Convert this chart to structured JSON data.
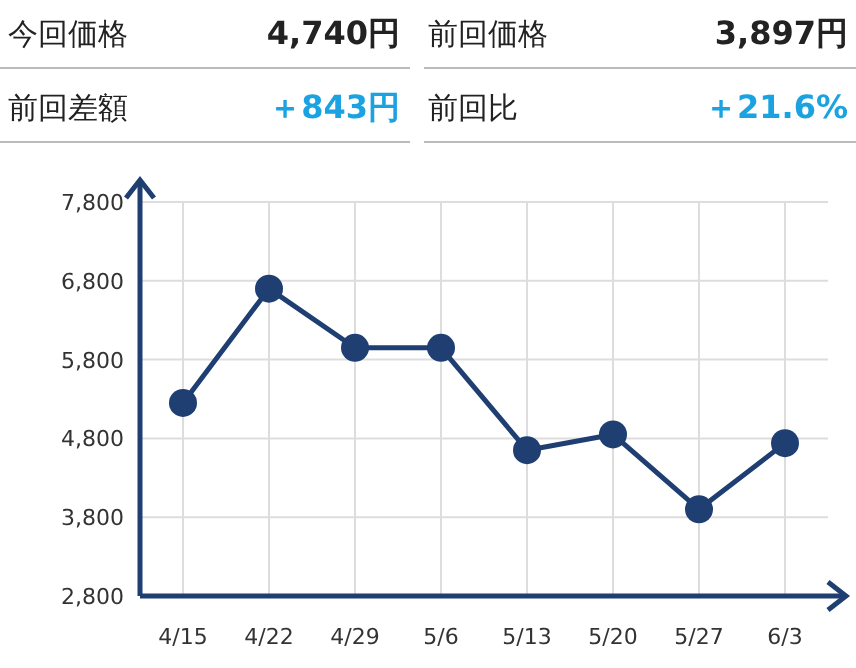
{
  "chart_data": [
    {
      "type": "other",
      "annotations": [
        "今回価格",
        "4,740円",
        "前回価格",
        "3,897円",
        "前回差額",
        "＋843円",
        "前回比",
        "＋21.6%"
      ]
    },
    {
      "type": "line",
      "categories": [
        "4/15",
        "4/22",
        "4/29",
        "5/6",
        "5/13",
        "5/20",
        "5/27",
        "6/3"
      ],
      "series": [
        {
          "color": "#1f3f73",
          "values": [
            5250,
            6700,
            5950,
            5950,
            4650,
            4850,
            3900,
            4740
          ]
        }
      ],
      "ylim": [
        2800,
        7800
      ],
      "yticks": [
        {
          "value": 2800,
          "label": "2,800"
        },
        {
          "value": 3800,
          "label": "3,800"
        },
        {
          "value": 4800,
          "label": "4,800"
        },
        {
          "value": 5800,
          "label": "5,800"
        },
        {
          "value": 6800,
          "label": "6,800"
        },
        {
          "value": 7800,
          "label": "7,800"
        }
      ],
      "grid": true,
      "marker": "circle",
      "line_style": "solid"
    }
  ]
}
